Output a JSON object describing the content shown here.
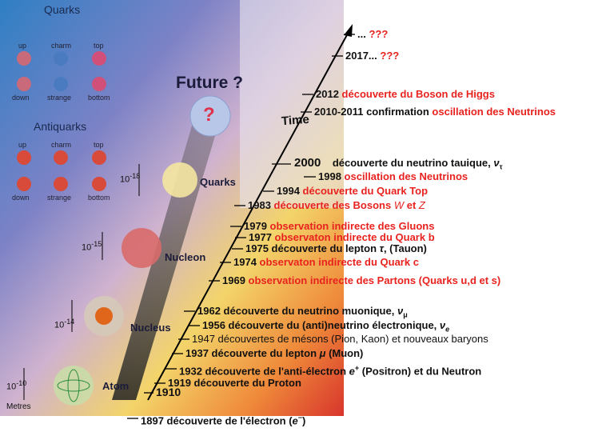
{
  "left_panel": {
    "quarks_title": "Quarks",
    "quarks_top": [
      "up",
      "charm",
      "top"
    ],
    "quarks_bottom": [
      "down",
      "strange",
      "bottom"
    ],
    "antiquarks_title": "Antiquarks",
    "antiquarks_top": [
      "up",
      "charm",
      "top"
    ],
    "antiquarks_bottom": [
      "down",
      "strange",
      "bottom"
    ],
    "future": "Future ?",
    "question": "?",
    "scales": [
      {
        "base": "10",
        "exp": "-18",
        "label": "Quarks"
      },
      {
        "base": "10",
        "exp": "-15",
        "label": "Nucleon"
      },
      {
        "base": "10",
        "exp": "-14",
        "label": "Nucleus"
      },
      {
        "base": "10",
        "exp": "-10",
        "label": "Atom"
      }
    ],
    "unit": "Metres"
  },
  "time_label": "Time",
  "timeline": [
    [
      "...",
      "???"
    ],
    [
      "2017...",
      "???"
    ],
    [
      "2012",
      "découverte du Boson de Higgs"
    ],
    [
      "2010-2011 confirmation",
      "oscillation des Neutrinos"
    ],
    [
      "2000",
      "découverte du neutrino tauique, ",
      "ν",
      "τ"
    ],
    [
      "1998",
      "oscillation des Neutrinos"
    ],
    [
      "1994",
      "découverte du Quark Top"
    ],
    [
      "1983",
      "découverte des Bosons ",
      "W",
      " et ",
      "Z"
    ],
    [
      "1979",
      "observation indirecte des Gluons"
    ],
    [
      "1977",
      "observaton indirecte du Quark b"
    ],
    [
      "1975",
      "découverte du lepton ",
      "τ",
      ", (Tauon)"
    ],
    [
      "1974",
      "observaton indirecte du Quark c"
    ],
    [
      "1969",
      "observation indirecte des Partons (Quarks u,d et s)"
    ],
    [
      "1962",
      "découverte du neutrino muonique, ",
      "ν",
      "μ"
    ],
    [
      "1956",
      "découverte du (anti)neutrino électronique, ",
      "ν",
      "e"
    ],
    [
      "1947",
      "découvertes de mésons (Pion, Kaon) et nouveaux baryons"
    ],
    [
      "1937",
      "découverte du lepton ",
      "μ",
      " (Muon)"
    ],
    [
      "1932",
      "découverte de l'anti-électron ",
      "e",
      "+",
      " (Positron) et du Neutron"
    ],
    [
      "1919",
      "découverte du Proton"
    ],
    [
      "1910"
    ],
    [
      "1897",
      "découverte de l'électron (",
      "e",
      "−",
      ")"
    ]
  ]
}
